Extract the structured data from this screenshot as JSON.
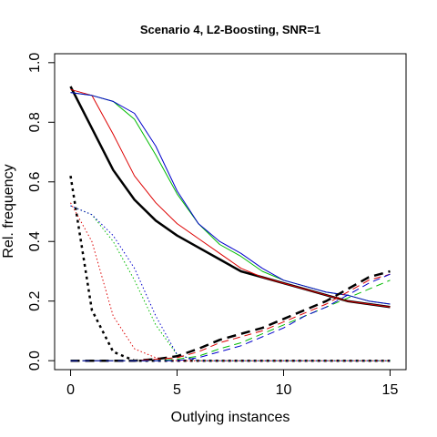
{
  "chart_data": {
    "type": "line",
    "title": "Scenario 4, L2-Boosting, SNR=1",
    "xlabel": "Outlying instances",
    "ylabel": "Rel. frequency",
    "xlim": [
      -0.75,
      15.75
    ],
    "ylim": [
      -0.03,
      1.03
    ],
    "xticks": [
      0,
      5,
      10,
      15
    ],
    "yticks": [
      0.0,
      0.2,
      0.4,
      0.6,
      0.8,
      1.0
    ],
    "x": [
      0,
      1,
      2,
      3,
      4,
      5,
      6,
      7,
      8,
      9,
      10,
      11,
      12,
      13,
      14,
      15
    ],
    "grid": false,
    "legend": "none",
    "series": [
      {
        "color": "#000000",
        "style": "solid",
        "width": 2.5,
        "values": [
          0.92,
          0.78,
          0.64,
          0.54,
          0.47,
          0.42,
          0.38,
          0.34,
          0.3,
          0.28,
          0.26,
          0.24,
          0.22,
          0.2,
          0.19,
          0.18
        ]
      },
      {
        "color": "#dd0000",
        "style": "solid",
        "width": 1,
        "values": [
          0.91,
          0.89,
          0.76,
          0.62,
          0.53,
          0.46,
          0.41,
          0.36,
          0.31,
          0.28,
          0.26,
          0.24,
          0.22,
          0.2,
          0.19,
          0.18
        ]
      },
      {
        "color": "#00bb00",
        "style": "solid",
        "width": 1,
        "values": [
          0.9,
          0.89,
          0.87,
          0.81,
          0.69,
          0.56,
          0.46,
          0.39,
          0.35,
          0.3,
          0.27,
          0.25,
          0.23,
          0.22,
          0.2,
          0.19
        ]
      },
      {
        "color": "#0000cc",
        "style": "solid",
        "width": 1,
        "values": [
          0.9,
          0.89,
          0.87,
          0.83,
          0.72,
          0.57,
          0.46,
          0.4,
          0.36,
          0.31,
          0.27,
          0.25,
          0.23,
          0.22,
          0.2,
          0.19
        ]
      },
      {
        "color": "#000000",
        "style": "dotted",
        "width": 2.5,
        "values": [
          0.62,
          0.17,
          0.03,
          0.0,
          0.0,
          0.0,
          0.0,
          0.0,
          0.0,
          0.0,
          0.0,
          0.0,
          0.0,
          0.0,
          0.0,
          0.0
        ]
      },
      {
        "color": "#dd0000",
        "style": "dotted",
        "width": 1,
        "values": [
          0.53,
          0.4,
          0.15,
          0.04,
          0.01,
          0.0,
          0.0,
          0.0,
          0.0,
          0.0,
          0.0,
          0.0,
          0.0,
          0.0,
          0.0,
          0.0
        ]
      },
      {
        "color": "#00bb00",
        "style": "dotted",
        "width": 1,
        "values": [
          0.52,
          0.49,
          0.4,
          0.27,
          0.12,
          0.02,
          0.0,
          0.0,
          0.0,
          0.0,
          0.0,
          0.0,
          0.0,
          0.0,
          0.0,
          0.0
        ]
      },
      {
        "color": "#0000cc",
        "style": "dotted",
        "width": 1,
        "values": [
          0.52,
          0.49,
          0.42,
          0.31,
          0.15,
          0.02,
          0.0,
          0.0,
          0.0,
          0.0,
          0.0,
          0.0,
          0.0,
          0.0,
          0.0,
          0.0
        ]
      },
      {
        "color": "#000000",
        "style": "dashed",
        "width": 2.5,
        "values": [
          0.0,
          0.0,
          0.0,
          0.0,
          0.005,
          0.015,
          0.04,
          0.07,
          0.09,
          0.11,
          0.14,
          0.17,
          0.2,
          0.24,
          0.28,
          0.3
        ]
      },
      {
        "color": "#dd0000",
        "style": "dashed",
        "width": 1,
        "values": [
          0.0,
          0.0,
          0.0,
          0.0,
          0.005,
          0.01,
          0.03,
          0.06,
          0.08,
          0.1,
          0.13,
          0.16,
          0.19,
          0.23,
          0.27,
          0.29
        ]
      },
      {
        "color": "#00bb00",
        "style": "dashed",
        "width": 1,
        "values": [
          0.0,
          0.0,
          0.0,
          0.0,
          0.0,
          0.005,
          0.015,
          0.04,
          0.06,
          0.09,
          0.12,
          0.15,
          0.18,
          0.21,
          0.24,
          0.27
        ]
      },
      {
        "color": "#0000cc",
        "style": "dashed",
        "width": 1,
        "values": [
          0.0,
          0.0,
          0.0,
          0.0,
          0.0,
          0.0,
          0.01,
          0.03,
          0.05,
          0.08,
          0.11,
          0.15,
          0.18,
          0.22,
          0.26,
          0.29
        ]
      }
    ]
  }
}
